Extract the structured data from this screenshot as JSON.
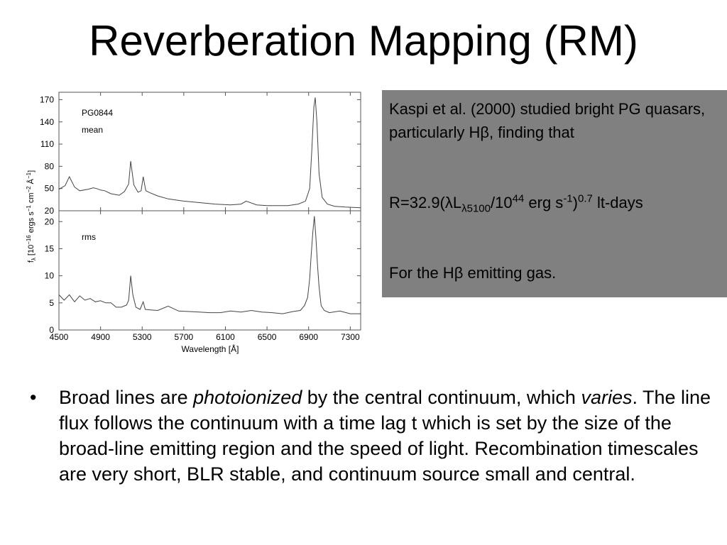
{
  "title": "Reverberation Mapping (RM)",
  "figure": {
    "top_label": "PG0844",
    "top_sublabel": "mean",
    "bottom_label": "rms",
    "xlabel": "Wavelength [Å]",
    "ylabel_main": "f",
    "ylabel_sub": "λ",
    "ylabel_rest": "[10",
    "ylabel_exp1": "−16",
    "ylabel_mid": "ergs s",
    "ylabel_exp2": "−1",
    "ylabel_cm": "cm",
    "ylabel_exp3": "−2",
    "ylabel_a": "Å",
    "ylabel_exp4": "−1",
    "ylabel_close": "]"
  },
  "chart_data": [
    {
      "type": "line",
      "title": "PG0844 mean",
      "xlim": [
        4500,
        7400
      ],
      "ylim": [
        20,
        180
      ],
      "xticks": [
        "4500",
        "4900",
        "5300",
        "5700",
        "6100",
        "6500",
        "6900",
        "7300"
      ],
      "yticks": [
        "20",
        "50",
        "80",
        "110",
        "140",
        "170"
      ],
      "series": [
        {
          "name": "mean",
          "x": [
            4500,
            4560,
            4600,
            4650,
            4700,
            4780,
            4830,
            4861,
            4900,
            4940,
            5000,
            5080,
            5130,
            5170,
            5190,
            5220,
            5260,
            5290,
            5310,
            5335,
            5380,
            5450,
            5550,
            5700,
            5850,
            6000,
            6150,
            6250,
            6300,
            6400,
            6500,
            6600,
            6700,
            6800,
            6870,
            6910,
            6930,
            6950,
            6963,
            6980,
            7000,
            7030,
            7080,
            7150,
            7250,
            7400
          ],
          "y": [
            49,
            54,
            66,
            52,
            47,
            49,
            51,
            50,
            48,
            47,
            43,
            41,
            46,
            56,
            87,
            55,
            45,
            47,
            66,
            47,
            44,
            40,
            36,
            33,
            31,
            29,
            28,
            29,
            33,
            28,
            27,
            27,
            27,
            29,
            33,
            50,
            100,
            160,
            173,
            140,
            70,
            38,
            29,
            26,
            25,
            24
          ]
        }
      ]
    },
    {
      "type": "line",
      "title": "rms",
      "xlim": [
        4500,
        7400
      ],
      "ylim": [
        0,
        22
      ],
      "xticks": [
        "4500",
        "4900",
        "5300",
        "5700",
        "6100",
        "6500",
        "6900",
        "7300"
      ],
      "yticks": [
        "0",
        "5",
        "10",
        "15",
        "20"
      ],
      "xlabel": "Wavelength [Å]",
      "series": [
        {
          "name": "rms",
          "x": [
            4500,
            4550,
            4600,
            4650,
            4700,
            4750,
            4800,
            4850,
            4900,
            4950,
            5000,
            5050,
            5100,
            5150,
            5170,
            5190,
            5210,
            5240,
            5280,
            5310,
            5330,
            5380,
            5450,
            5550,
            5650,
            5750,
            5850,
            5950,
            6050,
            6150,
            6250,
            6350,
            6450,
            6550,
            6650,
            6750,
            6820,
            6860,
            6890,
            6910,
            6925,
            6940,
            6955,
            6970,
            6985,
            7000,
            7020,
            7050,
            7100,
            7200,
            7300,
            7400
          ],
          "y": [
            6.5,
            5.5,
            6.5,
            5.2,
            6.3,
            5.5,
            5.8,
            5.2,
            5.4,
            5.0,
            5.0,
            4.2,
            4.2,
            4.6,
            5.5,
            10.0,
            6.5,
            4.2,
            3.8,
            5.2,
            3.8,
            3.7,
            3.6,
            4.4,
            3.5,
            3.4,
            3.3,
            3.2,
            3.2,
            3.5,
            3.3,
            3.6,
            3.3,
            3.2,
            3.0,
            3.4,
            3.6,
            4.5,
            6.0,
            9.5,
            14.0,
            18.0,
            21.0,
            17.0,
            12.0,
            8.0,
            4.5,
            3.6,
            3.2,
            3.5,
            3.0,
            3.0
          ]
        }
      ]
    }
  ],
  "callout": {
    "line1": "Kaspi et al. (2000) studied bright PG quasars, particularly Hβ, finding that",
    "formula_a": "R=32.9(λL",
    "formula_sub": "λ5100",
    "formula_b": "/10",
    "formula_sup1": "44",
    "formula_c": " erg s",
    "formula_sup2": "-1",
    "formula_d": ")",
    "formula_sup3": "0.7",
    "formula_e": " lt-days",
    "line3": "For the Hβ emitting gas."
  },
  "bullet": {
    "marker": "•",
    "t1": "Broad lines are ",
    "t2": "photoionized",
    "t3": " by the central continuum, which ",
    "t4": "varies",
    "t5": ".  The line flux follows the continuum with a time lag t which is set by the size of the broad-line emitting region and the speed of light.  Recombination timescales are very short, BLR stable, and continuum source small and central."
  }
}
